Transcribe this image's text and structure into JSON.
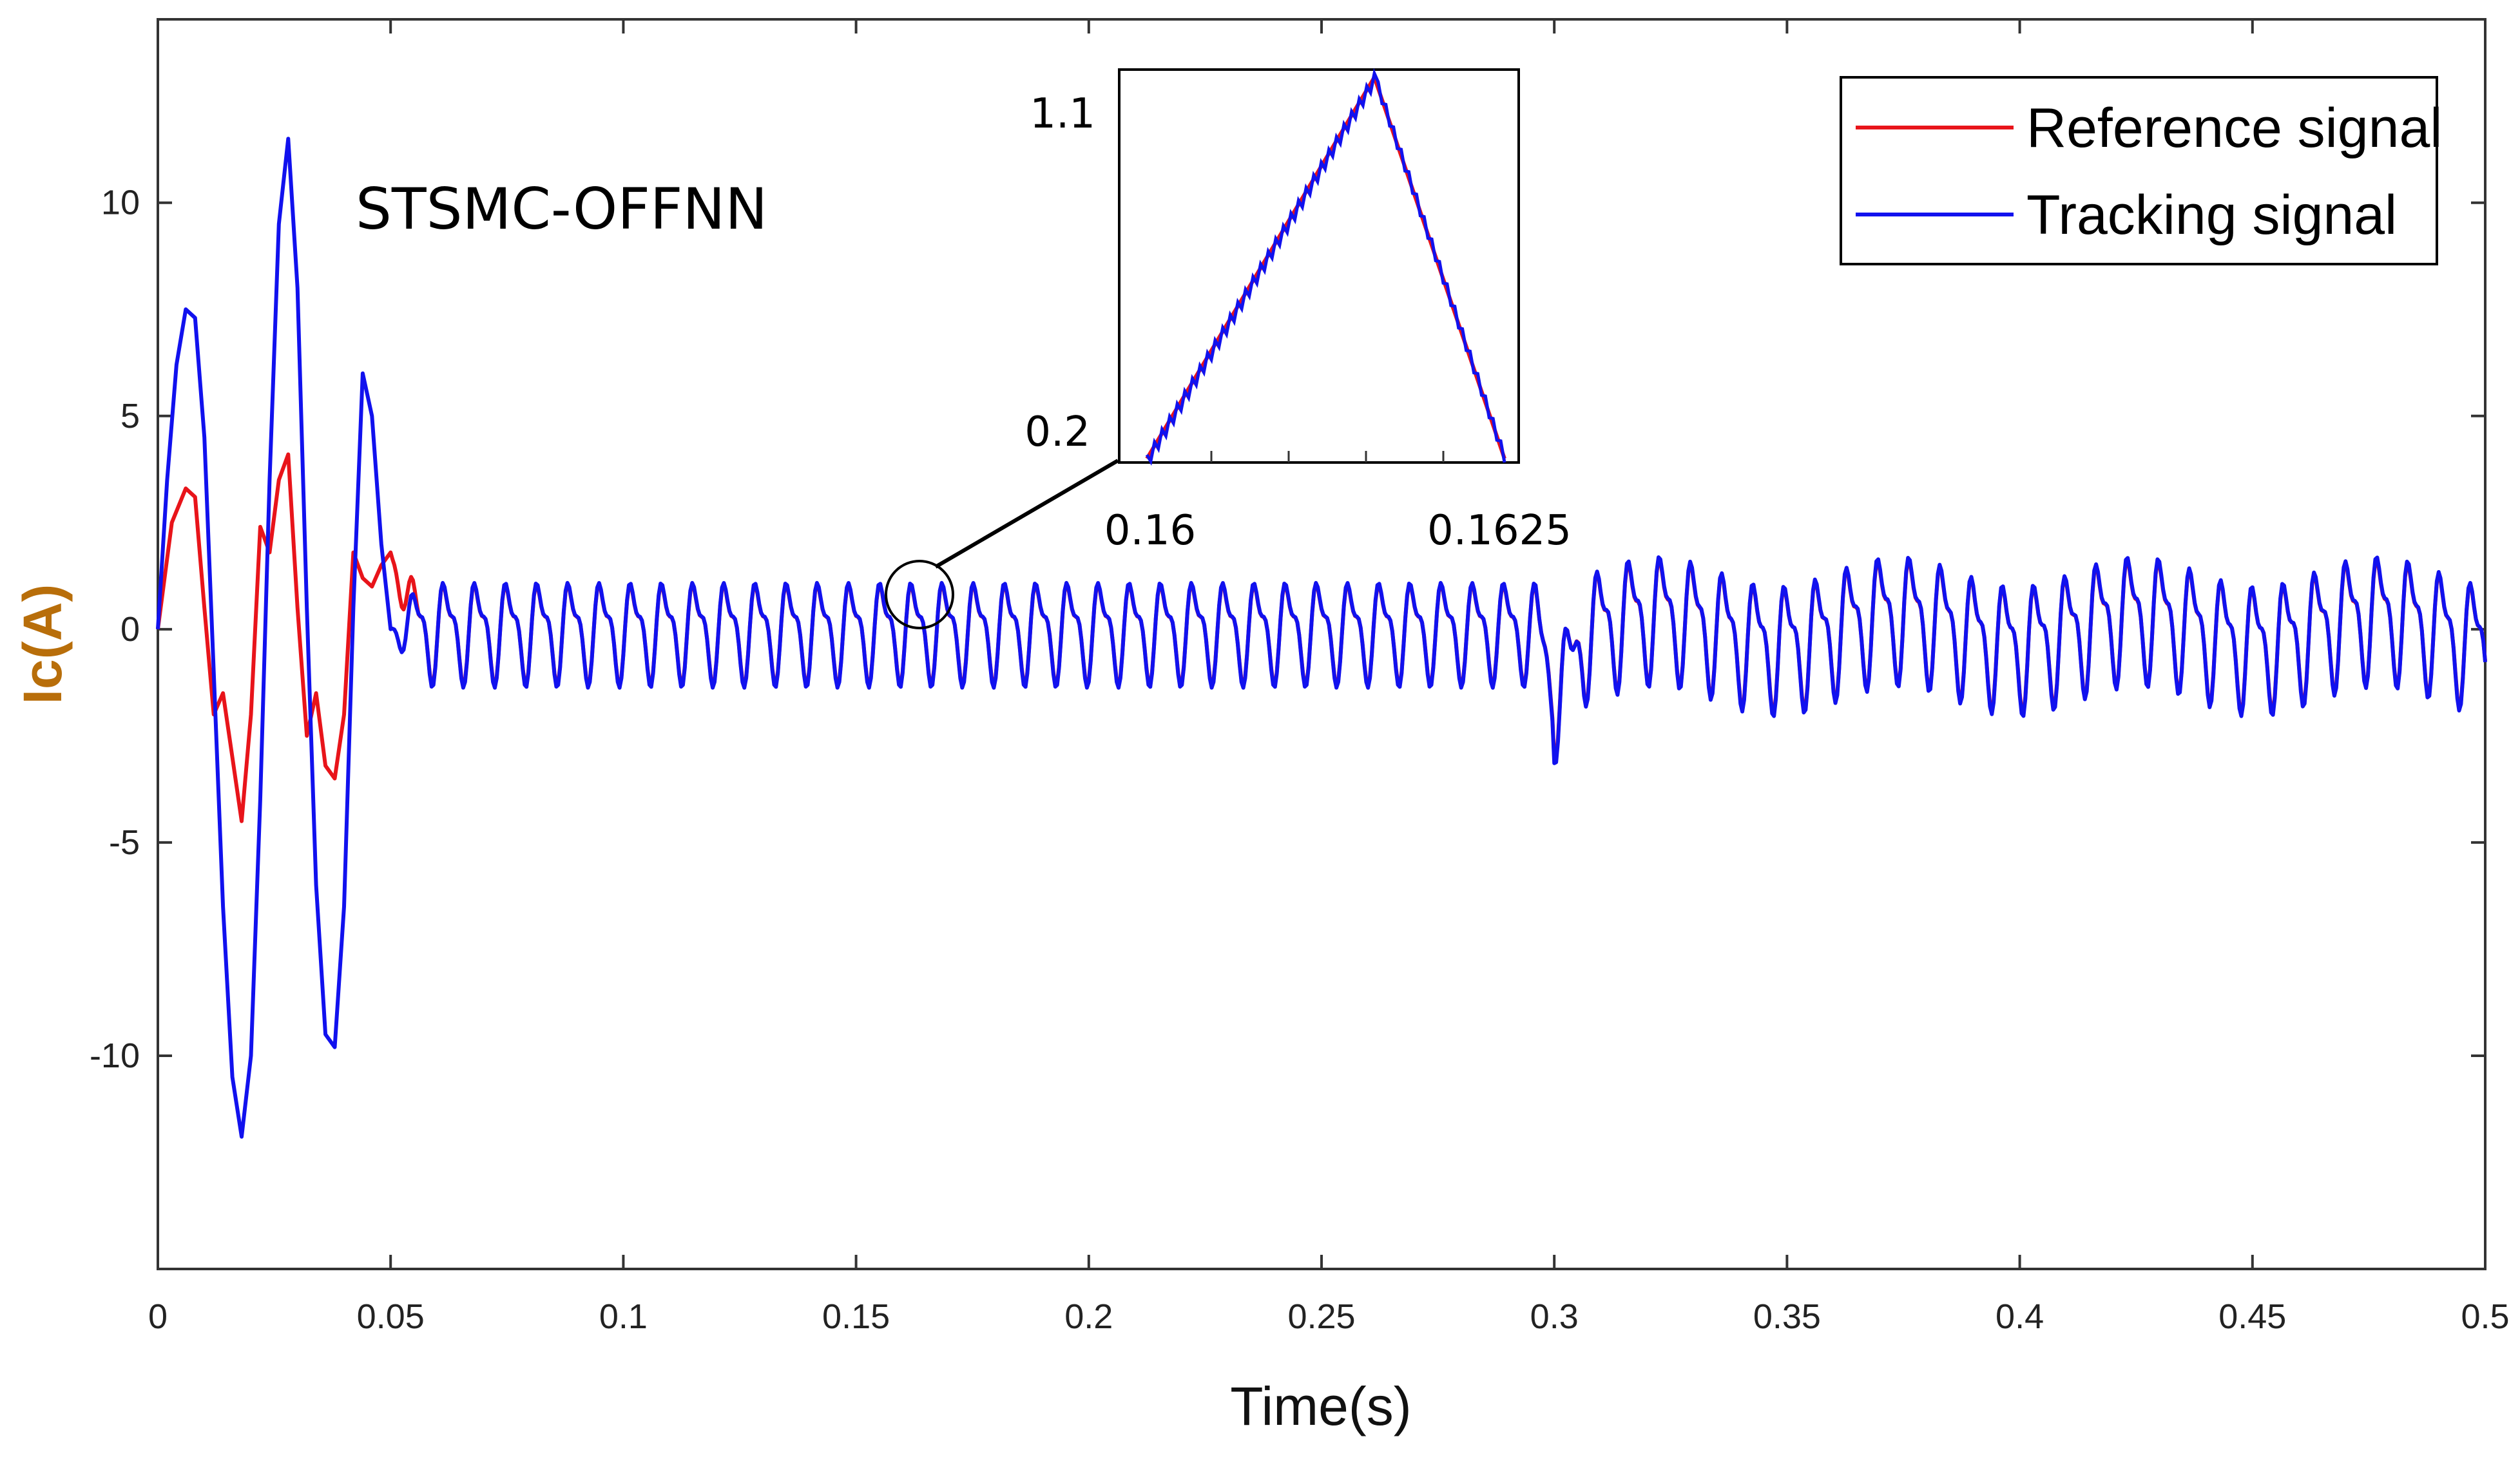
{
  "colors": {
    "reference": "#e8141a",
    "tracking": "#1111ee",
    "axis": "#333333",
    "xlabel": "#111111",
    "ylabel": "#b86e0a"
  },
  "chart_data": {
    "type": "line",
    "title": "",
    "xlabel": "Time(s)",
    "ylabel": "Ic(A)",
    "xlim": [
      0,
      0.5
    ],
    "ylim": [
      -15,
      14.3
    ],
    "x_ticks": [
      0,
      0.05,
      0.1,
      0.15,
      0.2,
      0.25,
      0.3,
      0.35,
      0.4,
      0.45,
      0.5
    ],
    "x_tick_labels": [
      "0",
      "0.05",
      "0.1",
      "0.15",
      "0.2",
      "0.25",
      "0.3",
      "0.35",
      "0.4",
      "0.45",
      "0.5"
    ],
    "y_ticks": [
      -10,
      -5,
      0,
      5,
      10
    ],
    "y_tick_labels": [
      "-10",
      "-5",
      "0",
      "5",
      "10"
    ],
    "grid": false,
    "legend_position": "top-right",
    "annotation": "STSMC-OFFNN",
    "series": [
      {
        "name": "Reference signal",
        "x": [
          0,
          0.003,
          0.006,
          0.008,
          0.01,
          0.012,
          0.014,
          0.016,
          0.018,
          0.02,
          0.022,
          0.024,
          0.026,
          0.028,
          0.03,
          0.032,
          0.034,
          0.036,
          0.038,
          0.04,
          0.042,
          0.044,
          0.046,
          0.048,
          0.05
        ],
        "y": [
          0,
          2.5,
          3.3,
          3.1,
          0.5,
          -2.0,
          -1.5,
          -3.0,
          -4.5,
          -2.0,
          2.4,
          1.8,
          3.5,
          4.1,
          0.5,
          -2.5,
          -1.5,
          -3.2,
          -3.5,
          -2.0,
          1.8,
          1.2,
          1.0,
          1.5,
          1.8
        ]
      },
      {
        "name": "Tracking signal",
        "x": [
          0,
          0.002,
          0.004,
          0.006,
          0.008,
          0.01,
          0.012,
          0.014,
          0.016,
          0.018,
          0.02,
          0.022,
          0.024,
          0.026,
          0.028,
          0.03,
          0.032,
          0.034,
          0.036,
          0.038,
          0.04,
          0.042,
          0.044,
          0.046,
          0.048,
          0.05
        ],
        "y": [
          0,
          3.5,
          6.2,
          7.5,
          7.3,
          4.5,
          -1.0,
          -6.5,
          -10.5,
          -11.9,
          -10.0,
          -4.0,
          3.5,
          9.5,
          11.5,
          8.0,
          0.5,
          -6.0,
          -9.5,
          -9.8,
          -6.5,
          0.5,
          6.0,
          5.0,
          2.0,
          0.0
        ]
      }
    ],
    "steady_state": {
      "segment_1": {
        "x_range": [
          0.05,
          0.3
        ],
        "period": 0.0067,
        "max_approx": 1.5,
        "min_approx": -1.7
      },
      "segment_2": {
        "x_range": [
          0.3,
          0.5
        ],
        "period": 0.0067,
        "max_approx": 2.0,
        "min_approx": -2.5
      }
    },
    "inset": {
      "x_tick_labels": [
        "0.16",
        "0.1625"
      ],
      "y_tick_labels": [
        "1.1",
        "0.2"
      ],
      "zoom_center": [
        0.163,
        0.9
      ]
    }
  }
}
